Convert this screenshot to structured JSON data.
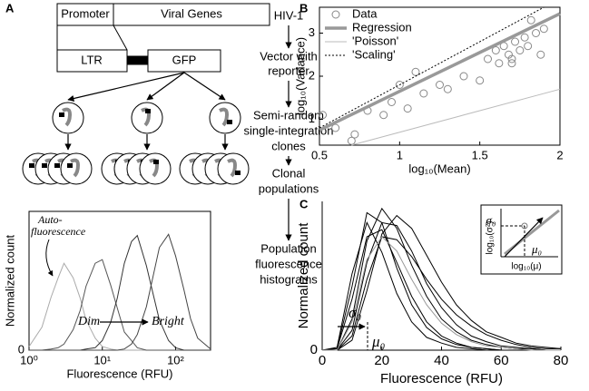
{
  "panel_labels": [
    "A",
    "B",
    "C"
  ],
  "diagram": {
    "boxes": [
      "Promoter",
      "Viral Genes",
      "LTR",
      "GFP"
    ],
    "steps": [
      [
        "HIV-1"
      ],
      [
        "Vector with",
        "reporter"
      ],
      [
        "Semi-random",
        "single-integration",
        "clones"
      ],
      [
        "Clonal",
        "populations"
      ],
      [
        "Population",
        "fluorescence",
        "histograms"
      ]
    ]
  },
  "chart_data": [
    {
      "type": "line",
      "xscale": "log",
      "xlabel": "Fluorescence (RFU)",
      "ylabel": "Normalized count",
      "annotations": [
        "Auto-",
        "fluorescence",
        "Dim",
        "Bright"
      ],
      "x": [
        1,
        1.5,
        2,
        2.5,
        3,
        4,
        5,
        6,
        8,
        10,
        13,
        16,
        20,
        25,
        30,
        40,
        50,
        60,
        80,
        100,
        130,
        160,
        200,
        300
      ],
      "xlim": [
        1,
        300
      ],
      "xticks": [
        {
          "value": 1,
          "label": "10⁰"
        },
        {
          "value": 10,
          "label": "10¹"
        },
        {
          "value": 100,
          "label": "10²"
        }
      ],
      "ylim": [
        0,
        1.15
      ],
      "yticks": [
        0
      ],
      "series": [
        {
          "color": "#aaaaaa",
          "values": [
            0.03,
            0.19,
            0.44,
            0.6,
            0.72,
            0.6,
            0.43,
            0.25,
            0.1,
            0.03,
            0.01,
            0,
            0,
            0,
            0,
            0,
            0,
            0,
            0,
            0,
            0,
            0,
            0,
            0
          ]
        },
        {
          "color": "#555555",
          "values": [
            0,
            0,
            0.01,
            0.02,
            0.05,
            0.17,
            0.33,
            0.53,
            0.72,
            0.75,
            0.54,
            0.35,
            0.15,
            0.08,
            0.02,
            0,
            0,
            0,
            0,
            0,
            0,
            0,
            0,
            0
          ]
        },
        {
          "color": "#333333",
          "values": [
            0,
            0,
            0,
            0,
            0,
            0,
            0,
            0.01,
            0.02,
            0.08,
            0.23,
            0.43,
            0.72,
            0.9,
            0.95,
            0.7,
            0.45,
            0.25,
            0.08,
            0.02,
            0,
            0,
            0,
            0
          ]
        },
        {
          "color": "#444444",
          "values": [
            0,
            0,
            0,
            0,
            0,
            0,
            0,
            0,
            0,
            0,
            0,
            0,
            0.01,
            0.05,
            0.13,
            0.36,
            0.63,
            0.85,
            0.96,
            0.78,
            0.5,
            0.26,
            0.1,
            0.01
          ]
        }
      ]
    },
    {
      "type": "scatter",
      "xlabel": "log₁₀(Mean)",
      "ylabel": "log₁₀(Variance)",
      "legend": "upper left",
      "xlim": [
        0.5,
        2
      ],
      "xticks": [
        0.5,
        1,
        1.5,
        2
      ],
      "ylim": [
        0.4,
        3.6
      ],
      "yticks": [
        1,
        2,
        3
      ],
      "series": [
        {
          "name": "Data",
          "color": "#888888",
          "style": "markers",
          "x": [
            0.52,
            0.6,
            0.7,
            0.72,
            0.8,
            0.9,
            0.95,
            1.0,
            1.05,
            1.1,
            1.15,
            1.25,
            1.3,
            1.4,
            1.5,
            1.55,
            1.6,
            1.62,
            1.65,
            1.68,
            1.7,
            1.72,
            1.75,
            1.78,
            1.8,
            1.82,
            1.85,
            1.88,
            1.9,
            1.7
          ],
          "values": [
            1.1,
            0.8,
            0.5,
            0.65,
            1.2,
            1.1,
            1.4,
            1.8,
            1.25,
            2.1,
            1.6,
            1.8,
            1.7,
            2.0,
            1.9,
            2.4,
            2.6,
            2.3,
            2.7,
            2.5,
            2.3,
            2.8,
            2.6,
            2.9,
            2.7,
            3.3,
            3.0,
            2.5,
            3.1,
            2.4
          ]
        },
        {
          "name": "Regression",
          "color": "#999999",
          "style": "thick",
          "x": [
            0.5,
            2
          ],
          "values": [
            0.75,
            3.45
          ]
        },
        {
          "name": "'Poisson'",
          "color": "#bbbbbb",
          "style": "solid",
          "x": [
            0.7,
            2
          ],
          "values": [
            0.4,
            1.7
          ]
        },
        {
          "name": "'Scaling'",
          "color": "#000000",
          "style": "dotted",
          "x": [
            0.5,
            1.9
          ],
          "values": [
            0.8,
            3.6
          ]
        }
      ]
    },
    {
      "type": "line",
      "xlabel": "Fluorescence (RFU)",
      "ylabel": "Normalized count",
      "annotations": [
        "σ₀",
        "μ₀"
      ],
      "inset": {
        "ylabel": "log₁₀(σ²)",
        "xlabel": "log₁₀(μ)",
        "y_mark": "σ₀",
        "x_mark": "μ₀"
      },
      "x": [
        0,
        5,
        10,
        15,
        20,
        25,
        30,
        35,
        40,
        45,
        50,
        55,
        60,
        65,
        70,
        75,
        80
      ],
      "xlim": [
        0,
        80
      ],
      "xticks": [
        0,
        20,
        40,
        60,
        80
      ],
      "ylim": [
        0,
        1.05
      ],
      "yticks": [
        0
      ],
      "series": [
        {
          "color": "#000000",
          "values": [
            0,
            0.02,
            0.54,
            0.9,
            0.69,
            0.4,
            0.2,
            0.09,
            0.05,
            0.02,
            0.01,
            0,
            0,
            0,
            0,
            0,
            0
          ]
        },
        {
          "color": "#000000",
          "values": [
            0,
            0,
            0.22,
            0.77,
            1.0,
            0.86,
            0.6,
            0.38,
            0.22,
            0.13,
            0.07,
            0.04,
            0.02,
            0.01,
            0.01,
            0,
            0
          ]
        },
        {
          "color": "#000000",
          "values": [
            0,
            0,
            0.07,
            0.42,
            0.82,
            0.95,
            0.86,
            0.67,
            0.48,
            0.32,
            0.21,
            0.13,
            0.09,
            0.05,
            0.03,
            0.02,
            0.01
          ]
        },
        {
          "color": "#000000",
          "values": [
            0,
            0.01,
            0.36,
            0.8,
            0.85,
            0.62,
            0.38,
            0.2,
            0.1,
            0.05,
            0.02,
            0.01,
            0,
            0,
            0,
            0,
            0
          ]
        },
        {
          "color": "#000000",
          "values": [
            0,
            0,
            0.14,
            0.62,
            0.9,
            0.88,
            0.7,
            0.47,
            0.3,
            0.18,
            0.1,
            0.06,
            0.03,
            0.02,
            0.01,
            0,
            0
          ]
        },
        {
          "color": "#000000",
          "values": [
            0,
            0.01,
            0.45,
            0.97,
            0.9,
            0.58,
            0.32,
            0.16,
            0.08,
            0.04,
            0.02,
            0.01,
            0,
            0,
            0,
            0,
            0
          ]
        },
        {
          "color": "#000000",
          "values": [
            0,
            0,
            0.1,
            0.5,
            0.8,
            0.78,
            0.66,
            0.5,
            0.36,
            0.25,
            0.17,
            0.11,
            0.07,
            0.04,
            0.02,
            0.01,
            0.01
          ]
        },
        {
          "color": "#999999",
          "values": [
            0,
            0,
            0.2,
            0.64,
            0.8,
            0.7,
            0.5,
            0.32,
            0.19,
            0.11,
            0.06,
            0.03,
            0.02,
            0.01,
            0,
            0,
            0
          ]
        }
      ]
    }
  ]
}
